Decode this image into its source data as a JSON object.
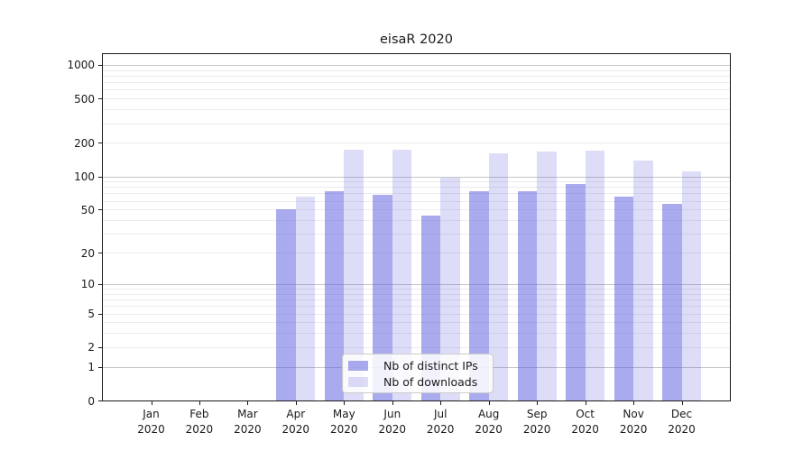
{
  "title": "eisaR 2020",
  "colors": {
    "bar_base": "#5555dd",
    "bar_distinct_ips": "rgba(85,85,221,0.5)",
    "bar_downloads": "rgba(85,85,221,0.2)",
    "grid_major": "#c6c6c6",
    "grid_minor": "#ececec",
    "axis": "#1a1a1a"
  },
  "legend": {
    "items": [
      {
        "label": "Nb of distinct IPs",
        "color": "rgba(85,85,221,0.5)"
      },
      {
        "label": "Nb of downloads",
        "color": "rgba(85,85,221,0.2)"
      }
    ],
    "position": "lower center"
  },
  "chart_data": {
    "type": "bar",
    "title": "eisaR 2020",
    "xlabel": "",
    "ylabel": "",
    "yscale": "log1p",
    "ylim": [
      0,
      1270
    ],
    "grid": true,
    "categories": [
      "Jan 2020",
      "Feb 2020",
      "Mar 2020",
      "Apr 2020",
      "May 2020",
      "Jun 2020",
      "Jul 2020",
      "Aug 2020",
      "Sep 2020",
      "Oct 2020",
      "Nov 2020",
      "Dec 2020"
    ],
    "series": [
      {
        "name": "Nb of distinct IPs",
        "values": [
          0,
          0,
          0,
          50,
          73,
          68,
          44,
          74,
          73,
          86,
          65,
          56
        ]
      },
      {
        "name": "Nb of downloads",
        "values": [
          0,
          0,
          0,
          66,
          175,
          175,
          97,
          160,
          168,
          172,
          140,
          111
        ]
      }
    ],
    "ytick_values": [
      0,
      1,
      2,
      5,
      10,
      20,
      50,
      100,
      200,
      500,
      1000
    ],
    "ytick_labels": [
      "0",
      "1",
      "2",
      "5",
      "10",
      "20",
      "50",
      "100",
      "200",
      "500",
      "1000"
    ],
    "grid_major_values": [
      1,
      10,
      100,
      1000
    ],
    "grid_minor_values": [
      2,
      5,
      20,
      50,
      200,
      500,
      3,
      4,
      6,
      7,
      8,
      9,
      30,
      40,
      60,
      70,
      80,
      90,
      300,
      400,
      600,
      700,
      800,
      900
    ]
  }
}
